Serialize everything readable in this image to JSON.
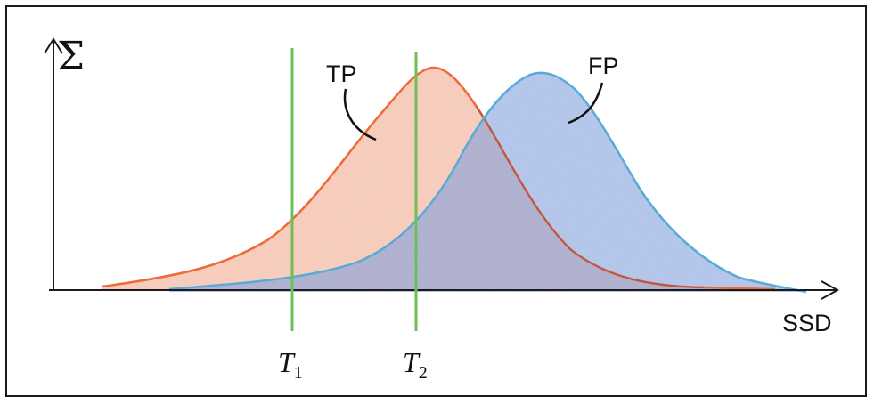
{
  "labels": {
    "y_axis": "Σ",
    "x_axis": "SSD",
    "tp": "TP",
    "fp": "FP",
    "t1_main": "T",
    "t1_sub": "1",
    "t2_main": "T",
    "t2_sub": "2"
  },
  "colors": {
    "tp_fill": "#f4a37f",
    "tp_stroke": "#ee6a3a",
    "fp_fill": "#6e95dc",
    "fp_stroke": "#58aad8",
    "threshold": "#6fbf58",
    "axis": "#1a1a1a"
  }
}
